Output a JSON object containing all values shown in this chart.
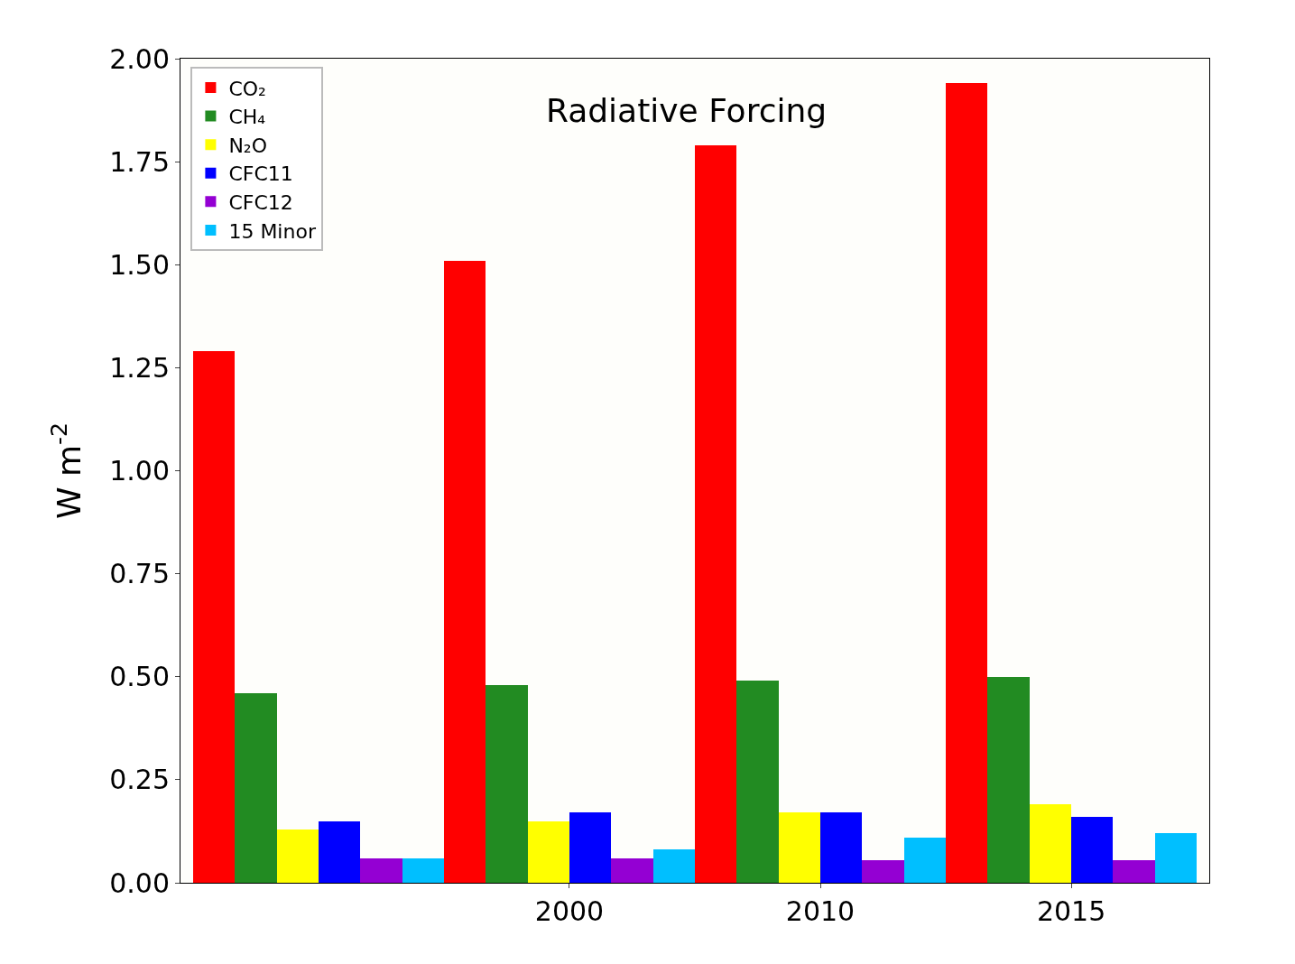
{
  "chart_data": {
    "type": "bar",
    "title": "Radiative Forcing",
    "ylabel": "W m$^{-2}$",
    "categories": [
      null,
      "2000",
      "2010",
      "2015"
    ],
    "series": [
      {
        "name": "CO₂",
        "color": "#ff0000",
        "values": [
          1.29,
          1.51,
          1.79,
          1.94
        ]
      },
      {
        "name": "CH₄",
        "color": "#228b22",
        "values": [
          0.46,
          0.48,
          0.49,
          0.5
        ]
      },
      {
        "name": "N₂O",
        "color": "#ffff00",
        "values": [
          0.13,
          0.15,
          0.17,
          0.19
        ]
      },
      {
        "name": "CFC11",
        "color": "#0000ff",
        "values": [
          0.15,
          0.17,
          0.17,
          0.16
        ]
      },
      {
        "name": "CFC12",
        "color": "#9400d3",
        "values": [
          0.06,
          0.06,
          0.055,
          0.055
        ]
      },
      {
        "name": "15 Minor",
        "color": "#00bfff",
        "values": [
          0.06,
          0.08,
          0.11,
          0.12
        ]
      }
    ],
    "ylim": [
      0,
      2.0
    ],
    "yticks": [
      {
        "value": 0,
        "label": "0.00"
      },
      {
        "value": 0.25,
        "label": "0.25"
      },
      {
        "value": 0.5,
        "label": "0.50"
      },
      {
        "value": 0.75,
        "label": "0.75"
      },
      {
        "value": 1.0,
        "label": "1.00"
      },
      {
        "value": 1.25,
        "label": "1.25"
      },
      {
        "value": 1.5,
        "label": "1.50"
      },
      {
        "value": 1.75,
        "label": "1.75"
      },
      {
        "value": 2.0,
        "label": "2.00"
      }
    ],
    "legend": "top left"
  }
}
